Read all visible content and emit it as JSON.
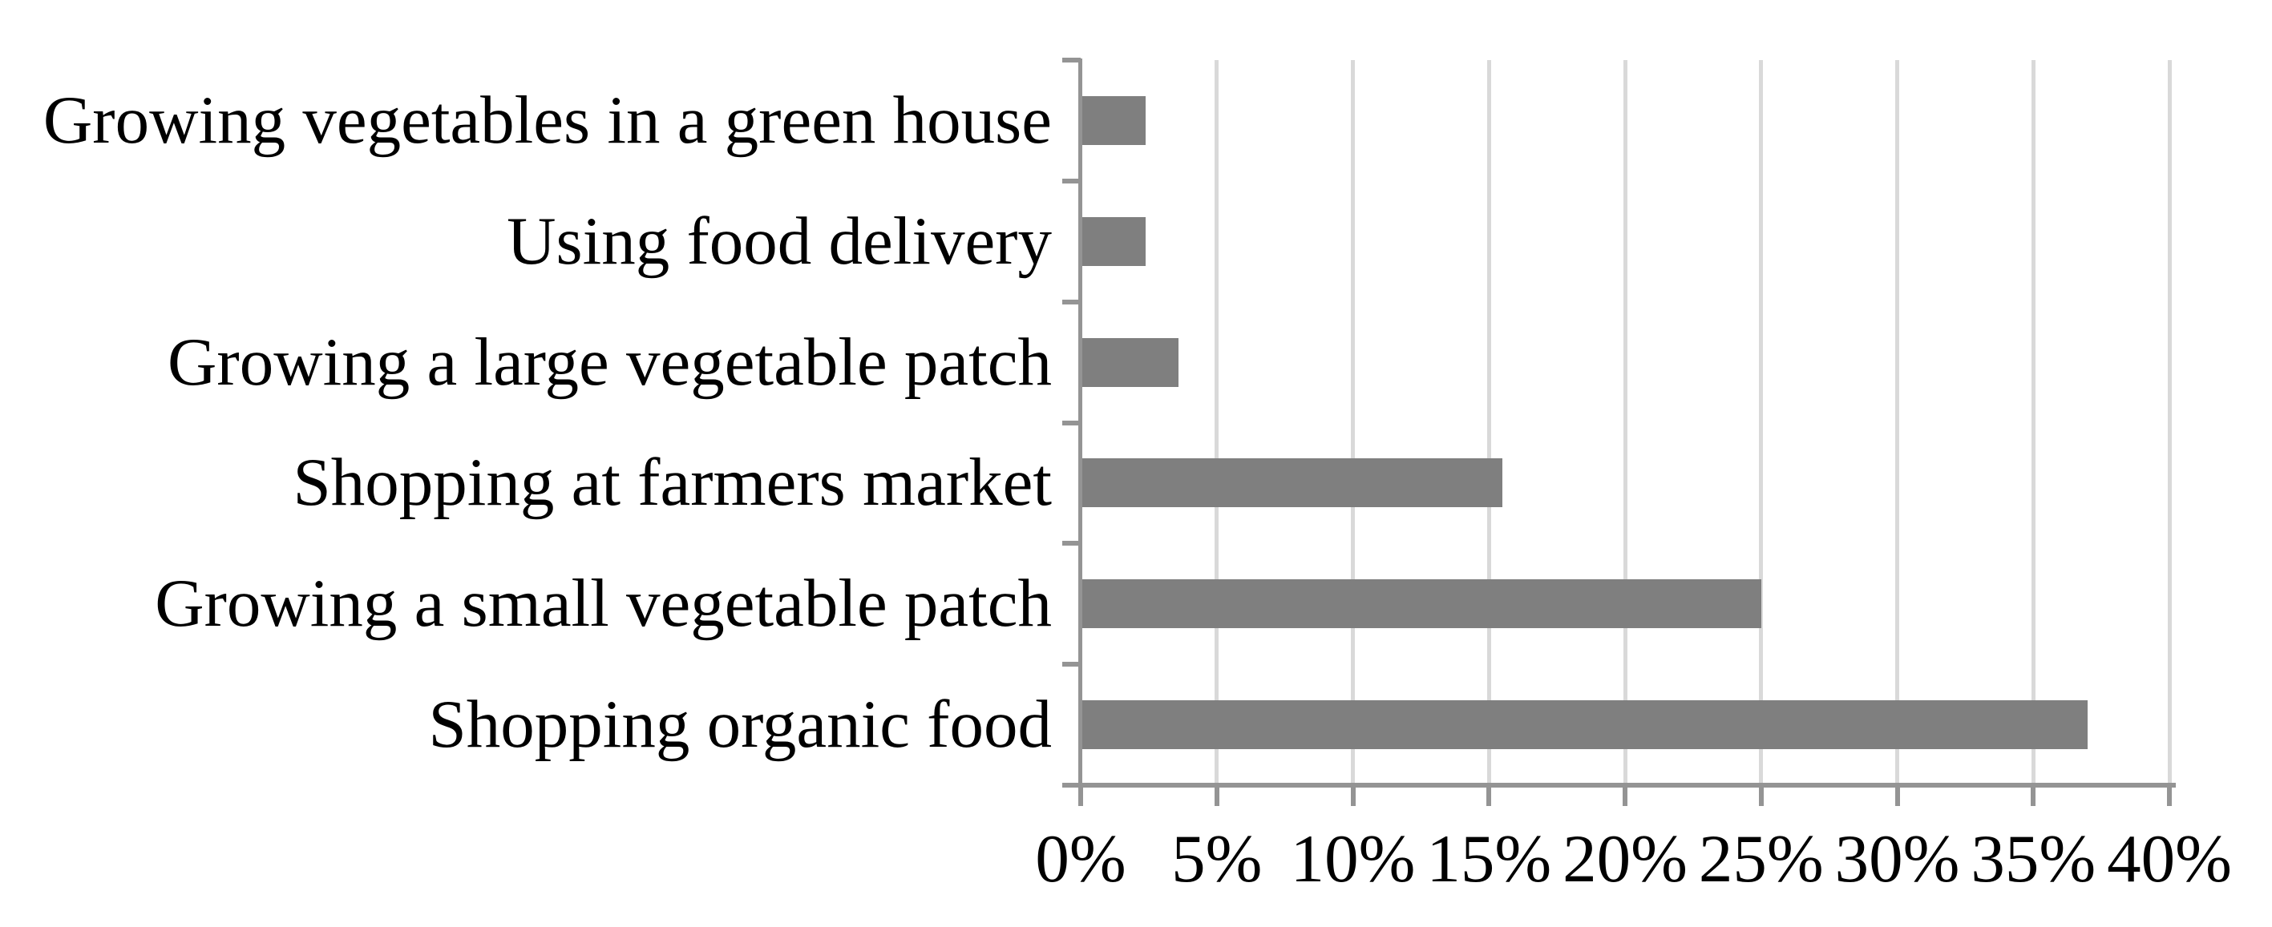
{
  "chart_data": {
    "type": "bar",
    "orientation": "horizontal",
    "title": "",
    "categories": [
      "Growing vegetables in a green house",
      "Using food delivery",
      "Growing a large vegetable patch",
      "Shopping at farmers market",
      "Growing a small vegetable patch",
      "Shopping organic food"
    ],
    "values": [
      2.4,
      2.4,
      3.6,
      15.5,
      25,
      37
    ],
    "value_unit": "%",
    "xlim": [
      0,
      40
    ],
    "x_tick_step": 5,
    "x_tick_labels": [
      "0%",
      "5%",
      "10%",
      "15%",
      "20%",
      "25%",
      "30%",
      "35%",
      "40%"
    ],
    "ylabel": "",
    "xlabel": "",
    "legend": null,
    "grid": "vertical",
    "colors": {
      "bar": "#7f7f7f",
      "axis": "#949494",
      "gridline": "#d9d9d9",
      "text": "#000000",
      "background": "#ffffff"
    }
  }
}
